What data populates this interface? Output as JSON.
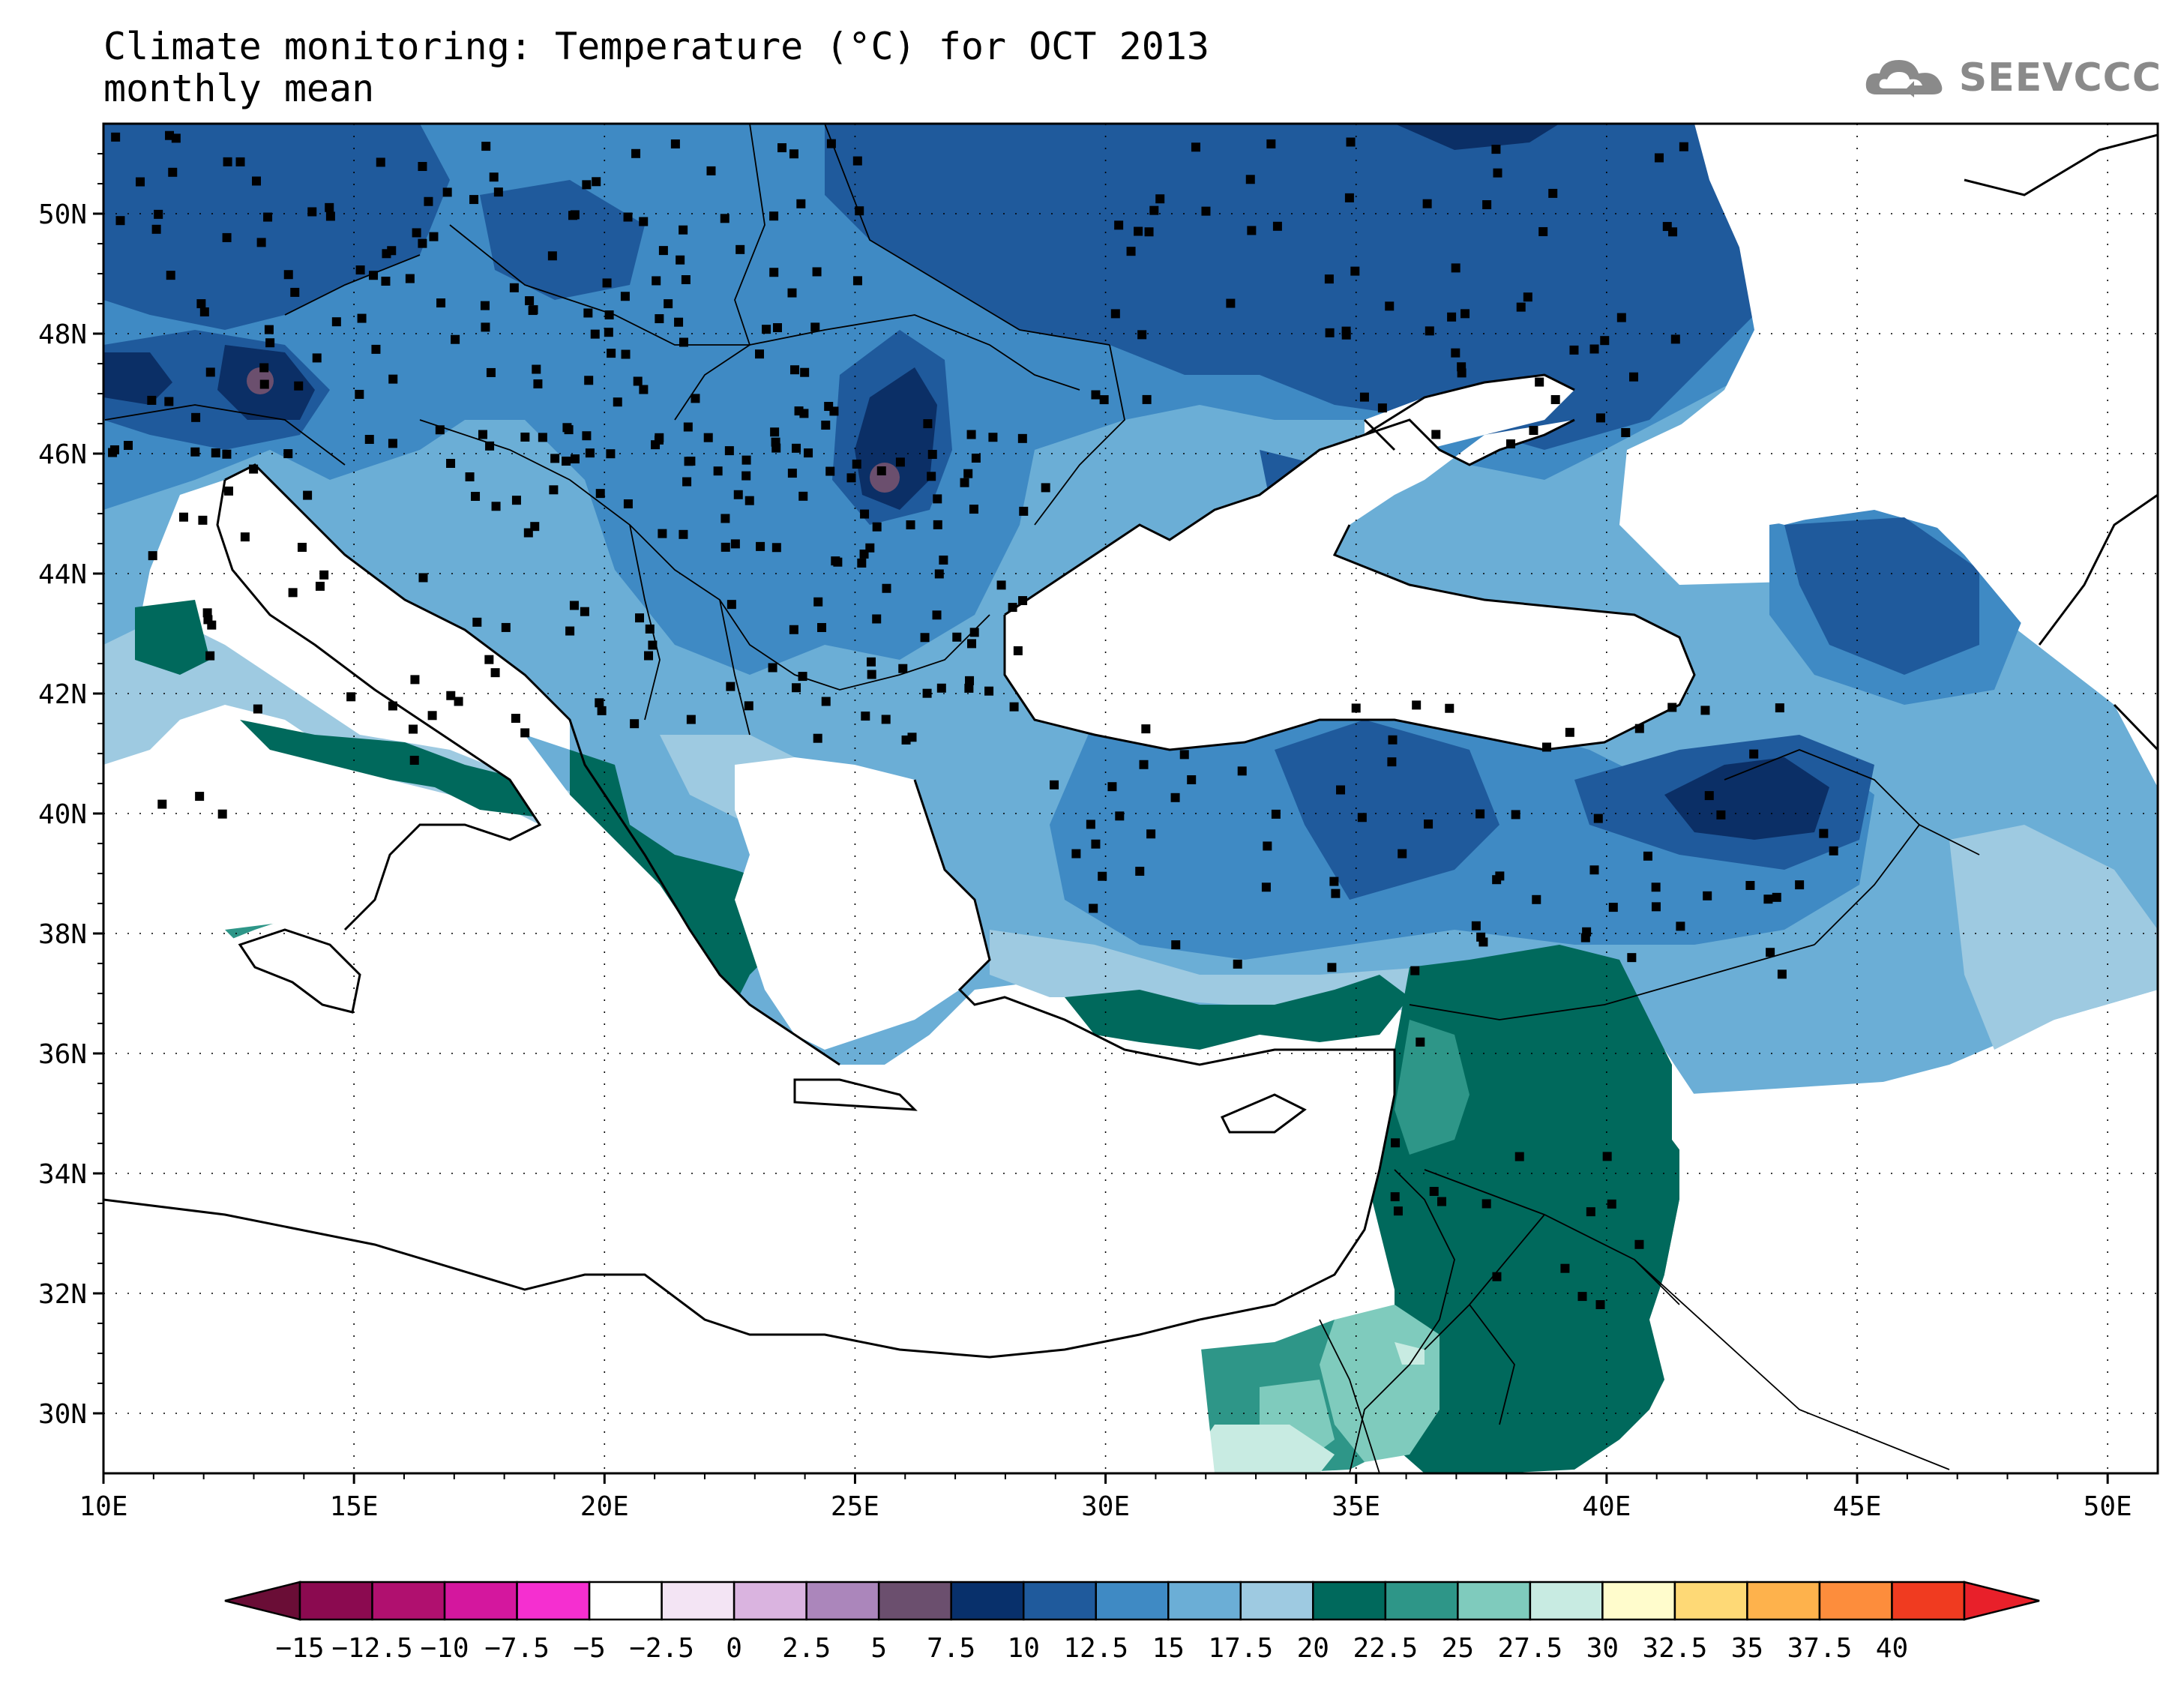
{
  "title": {
    "line1": "Climate monitoring: Temperature (°C) for OCT 2013",
    "line2": "monthly mean"
  },
  "logo": {
    "text": "SEEVCCC",
    "icon": "cloud-icon"
  },
  "map": {
    "lon_ticks": [
      "10E",
      "15E",
      "20E",
      "25E",
      "30E",
      "35E",
      "40E",
      "45E",
      "50E"
    ],
    "lat_ticks": [
      "30N",
      "32N",
      "34N",
      "36N",
      "38N",
      "40N",
      "42N",
      "44N",
      "46N",
      "48N",
      "50N"
    ],
    "lon_range": [
      10,
      51
    ],
    "lat_range": [
      29,
      51.5
    ]
  },
  "colorbar": {
    "labels": [
      "−15",
      "−12.5",
      "−10",
      "−7.5",
      "−5",
      "−2.5",
      "0",
      "2.5",
      "5",
      "7.5",
      "10",
      "12.5",
      "15",
      "17.5",
      "20",
      "22.5",
      "25",
      "27.5",
      "30",
      "32.5",
      "35",
      "37.5",
      "40"
    ],
    "colors": [
      "#8b0a50",
      "#b0106f",
      "#d4179e",
      "#f52fd0",
      "#ffffff",
      "#f3e4f4",
      "#dab4e0",
      "#ab86bb",
      "#6b4f6e",
      "#08306b",
      "#1f5a9c",
      "#3f8ac4",
      "#6baed6",
      "#9ecae1",
      "#00695c",
      "#2e9688",
      "#7fcbbd",
      "#c8ebe2",
      "#fffccc",
      "#fed976",
      "#feb24c",
      "#fd8d3c",
      "#f03b20"
    ],
    "low_color": "#6a0d36",
    "high_color": "#e8202a"
  },
  "palette": {
    "t5_7_5": "#0b2f66",
    "t7_5_10": "#1f5a9c",
    "t10_12_5": "#3f8ac4",
    "t12_5_15": "#6baed6",
    "t15_17_5": "#9ecae1",
    "t17_5_20": "#00695c",
    "t20_22_5": "#2e9688",
    "t22_5_25": "#7fcbbd",
    "t25_27_5": "#c8ebe2",
    "t2_5_5": "#6b4f6e"
  }
}
